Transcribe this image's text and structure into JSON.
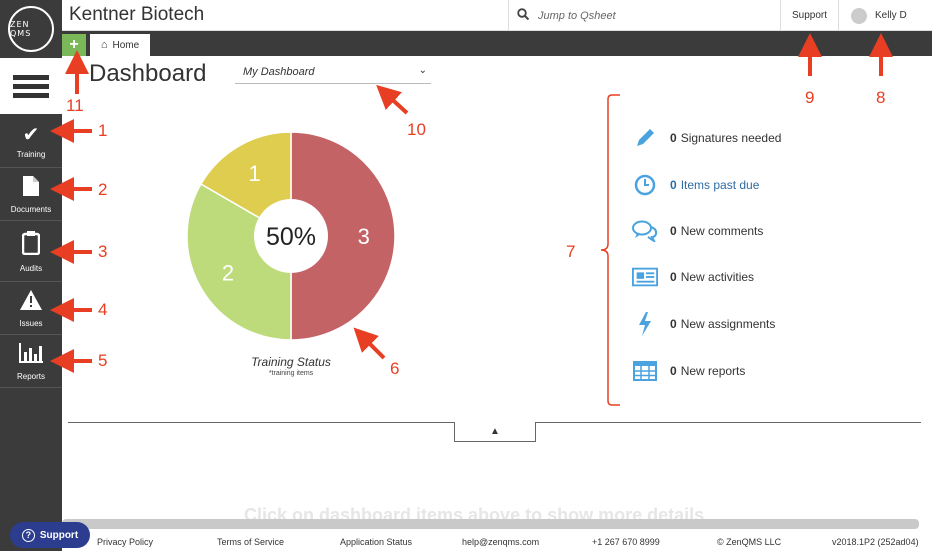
{
  "company": "Kentner Biotech",
  "logo": {
    "text": "ZEN QMS"
  },
  "search": {
    "placeholder": "Jump to Qsheet"
  },
  "header": {
    "support": "Support",
    "user": "Kelly D"
  },
  "tabs": {
    "add": "+",
    "home": "Home"
  },
  "sidebar": {
    "items": [
      {
        "label": "Training",
        "icon": "check-icon"
      },
      {
        "label": "Documents",
        "icon": "document-icon"
      },
      {
        "label": "Audits",
        "icon": "clipboard-icon"
      },
      {
        "label": "Issues",
        "icon": "warning-icon"
      },
      {
        "label": "Reports",
        "icon": "bar-chart-icon"
      }
    ]
  },
  "dashboard": {
    "title": "Dashboard",
    "selected": "My Dashboard"
  },
  "chart_data": {
    "type": "pie",
    "title": "Training Status",
    "subtitle": "*training items",
    "center_label": "50%",
    "slices": [
      {
        "label": "3",
        "value": 3,
        "color": "#c46366"
      },
      {
        "label": "2",
        "value": 2,
        "color": "#bedb7c"
      },
      {
        "label": "1",
        "value": 1,
        "color": "#dfcd4f"
      }
    ]
  },
  "stats": [
    {
      "count": "0",
      "label": "Signatures needed",
      "icon": "pencil-icon"
    },
    {
      "count": "0",
      "label": "Items past due",
      "icon": "clock-icon"
    },
    {
      "count": "0",
      "label": "New comments",
      "icon": "comments-icon"
    },
    {
      "count": "0",
      "label": "New activities",
      "icon": "activities-icon"
    },
    {
      "count": "0",
      "label": "New assignments",
      "icon": "lightning-icon"
    },
    {
      "count": "0",
      "label": "New reports",
      "icon": "table-icon"
    }
  ],
  "hint": "Click on dashboard items above to show more details",
  "footer": {
    "support": "Support",
    "privacy": "Privacy Policy",
    "terms": "Terms of Service",
    "status": "Application Status",
    "email": "help@zenqms.com",
    "phone": "+1 267 670 8999",
    "copyright": "© ZenQMS LLC",
    "version": "v2018.1P2 (252ad04)"
  },
  "annotations": [
    "1",
    "2",
    "3",
    "4",
    "5",
    "6",
    "7",
    "8",
    "9",
    "10",
    "11"
  ],
  "colors": {
    "accent": "#7ab85a",
    "annotation": "#e83e23",
    "icon": "#4aa3df"
  }
}
